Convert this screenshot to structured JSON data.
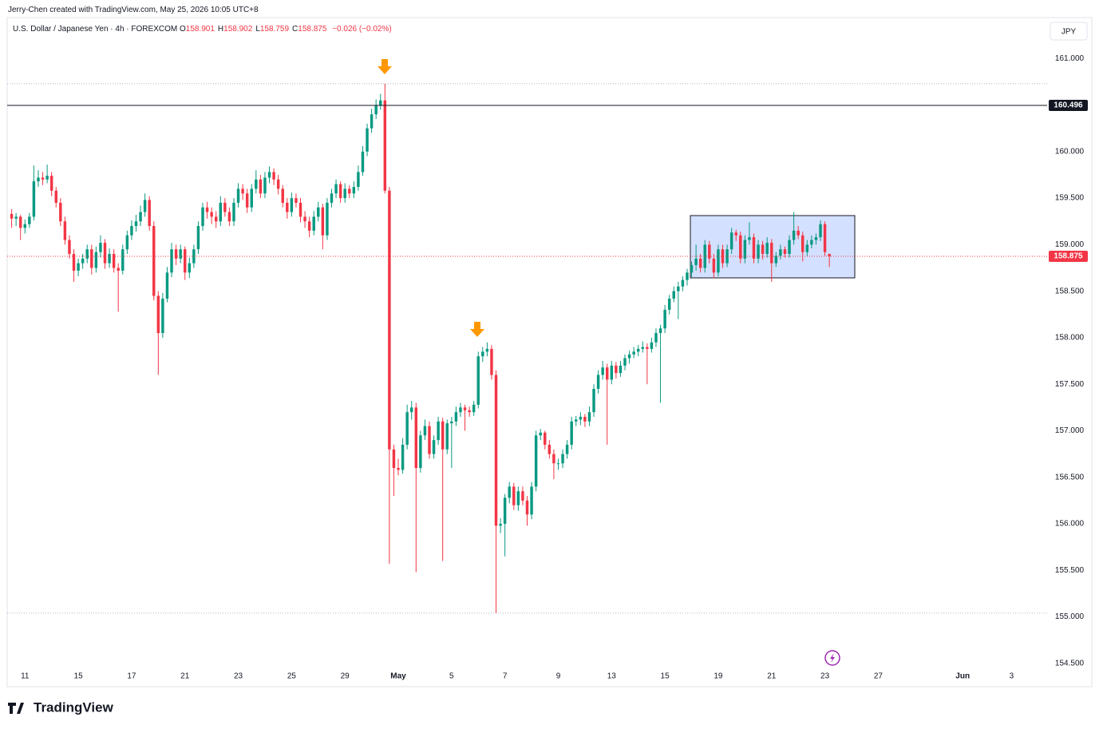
{
  "header": {
    "attribution": "Jerry-Chen created with TradingView.com, May 25, 2026 10:05 UTC+8",
    "symbol": "U.S. Dollar / Japanese Yen · 4h · FOREXCOM",
    "ohlc": [
      {
        "key": "O",
        "value": "158.901"
      },
      {
        "key": "H",
        "value": "158.902"
      },
      {
        "key": "L",
        "value": "158.759"
      },
      {
        "key": "C",
        "value": "158.875"
      }
    ],
    "change": "−0.026 (−0.02%)",
    "currency": "JPY",
    "brand": "TradingView"
  },
  "chart_data": {
    "type": "candlestick",
    "up_color": "#089981",
    "down_color": "#f23645",
    "grid": false,
    "xlim": [
      -1,
      233
    ],
    "ylim": [
      154.25,
      161.44
    ],
    "price_line": 160.496,
    "xticks": [
      {
        "value": 3,
        "label": "11"
      },
      {
        "value": 15,
        "label": "15"
      },
      {
        "value": 27,
        "label": "17"
      },
      {
        "value": 39,
        "label": "21"
      },
      {
        "value": 51,
        "label": "23"
      },
      {
        "value": 63,
        "label": "25"
      },
      {
        "value": 75,
        "label": "29"
      },
      {
        "value": 87,
        "label": "May"
      },
      {
        "value": 99,
        "label": "5"
      },
      {
        "value": 111,
        "label": "7"
      },
      {
        "value": 123,
        "label": "9"
      },
      {
        "value": 135,
        "label": "13"
      },
      {
        "value": 147,
        "label": "15"
      },
      {
        "value": 159,
        "label": "19"
      },
      {
        "value": 171,
        "label": "21"
      },
      {
        "value": 183,
        "label": "23"
      },
      {
        "value": 195,
        "label": "27"
      },
      {
        "value": 214,
        "label": "Jun"
      },
      {
        "value": 225,
        "label": "3"
      }
    ],
    "yticks": [
      {
        "value": 154.5,
        "label": "154.500"
      },
      {
        "value": 155,
        "label": "155.000"
      },
      {
        "value": 155.5,
        "label": "155.500"
      },
      {
        "value": 156,
        "label": "156.000"
      },
      {
        "value": 156.5,
        "label": "156.500"
      },
      {
        "value": 157,
        "label": "157.000"
      },
      {
        "value": 157.5,
        "label": "157.500"
      },
      {
        "value": 158,
        "label": "158.000"
      },
      {
        "value": 158.5,
        "label": "158.500"
      },
      {
        "value": 159,
        "label": "159.000"
      },
      {
        "value": 159.5,
        "label": "159.500"
      },
      {
        "value": 160,
        "label": "160.000"
      },
      {
        "value": 160.5,
        "label": "160.500"
      },
      {
        "value": 161,
        "label": "161.000"
      }
    ],
    "ohlc": [
      [
        159.33,
        159.38,
        159.18,
        159.28
      ],
      [
        159.28,
        159.34,
        159.2,
        159.3
      ],
      [
        159.3,
        159.32,
        159.05,
        159.18
      ],
      [
        159.18,
        159.27,
        159.12,
        159.22
      ],
      [
        159.22,
        159.34,
        159.18,
        159.3
      ],
      [
        159.3,
        159.85,
        159.26,
        159.68
      ],
      [
        159.68,
        159.8,
        159.62,
        159.72
      ],
      [
        159.72,
        159.78,
        159.64,
        159.7
      ],
      [
        159.7,
        159.86,
        159.66,
        159.74
      ],
      [
        159.74,
        159.78,
        159.52,
        159.58
      ],
      [
        159.58,
        159.62,
        159.4,
        159.45
      ],
      [
        159.45,
        159.5,
        159.2,
        159.25
      ],
      [
        159.25,
        159.3,
        159.0,
        159.05
      ],
      [
        159.05,
        159.1,
        158.85,
        158.9
      ],
      [
        158.9,
        158.95,
        158.6,
        158.72
      ],
      [
        158.72,
        158.85,
        158.66,
        158.8
      ],
      [
        158.8,
        158.9,
        158.74,
        158.85
      ],
      [
        158.85,
        159.0,
        158.8,
        158.95
      ],
      [
        158.95,
        159.0,
        158.68,
        158.75
      ],
      [
        158.75,
        158.98,
        158.7,
        158.92
      ],
      [
        158.92,
        159.1,
        158.86,
        159.02
      ],
      [
        159.02,
        159.06,
        158.74,
        158.8
      ],
      [
        158.8,
        158.96,
        158.75,
        158.9
      ],
      [
        158.9,
        158.95,
        158.7,
        158.75
      ],
      [
        158.75,
        158.8,
        158.28,
        158.72
      ],
      [
        158.72,
        159.0,
        158.68,
        158.95
      ],
      [
        158.95,
        159.15,
        158.9,
        159.1
      ],
      [
        159.1,
        159.26,
        159.05,
        159.2
      ],
      [
        159.2,
        159.32,
        159.14,
        159.25
      ],
      [
        159.25,
        159.42,
        159.2,
        159.35
      ],
      [
        159.35,
        159.55,
        159.3,
        159.48
      ],
      [
        159.48,
        159.52,
        159.15,
        159.2
      ],
      [
        159.2,
        159.25,
        158.4,
        158.45
      ],
      [
        158.45,
        158.5,
        157.6,
        158.05
      ],
      [
        158.05,
        158.48,
        158.0,
        158.42
      ],
      [
        158.42,
        158.76,
        158.38,
        158.7
      ],
      [
        158.7,
        159.02,
        158.65,
        158.95
      ],
      [
        158.95,
        159.0,
        158.78,
        158.85
      ],
      [
        158.85,
        159.0,
        158.8,
        158.95
      ],
      [
        158.95,
        158.98,
        158.62,
        158.7
      ],
      [
        158.7,
        158.86,
        158.64,
        158.8
      ],
      [
        158.8,
        159.0,
        158.75,
        158.95
      ],
      [
        158.95,
        159.25,
        158.9,
        159.2
      ],
      [
        159.2,
        159.45,
        159.15,
        159.4
      ],
      [
        159.4,
        159.46,
        159.28,
        159.35
      ],
      [
        159.35,
        159.4,
        159.22,
        159.3
      ],
      [
        159.3,
        159.36,
        159.18,
        159.25
      ],
      [
        159.25,
        159.52,
        159.2,
        159.45
      ],
      [
        159.45,
        159.5,
        159.3,
        159.35
      ],
      [
        159.35,
        159.4,
        159.2,
        159.25
      ],
      [
        159.25,
        159.5,
        159.2,
        159.45
      ],
      [
        159.45,
        159.66,
        159.4,
        159.6
      ],
      [
        159.6,
        159.65,
        159.48,
        159.55
      ],
      [
        159.55,
        159.6,
        159.34,
        159.4
      ],
      [
        159.4,
        159.65,
        159.35,
        159.6
      ],
      [
        159.6,
        159.8,
        159.55,
        159.7
      ],
      [
        159.7,
        159.75,
        159.5,
        159.55
      ],
      [
        159.55,
        159.78,
        159.5,
        159.72
      ],
      [
        159.72,
        159.84,
        159.66,
        159.78
      ],
      [
        159.78,
        159.82,
        159.64,
        159.7
      ],
      [
        159.7,
        159.75,
        159.54,
        159.6
      ],
      [
        159.6,
        159.64,
        159.4,
        159.45
      ],
      [
        159.45,
        159.5,
        159.28,
        159.35
      ],
      [
        159.35,
        159.56,
        159.3,
        159.5
      ],
      [
        159.5,
        159.55,
        159.4,
        159.45
      ],
      [
        159.45,
        159.5,
        159.24,
        159.3
      ],
      [
        159.3,
        159.36,
        159.18,
        159.25
      ],
      [
        159.25,
        159.3,
        159.08,
        159.15
      ],
      [
        159.15,
        159.36,
        159.1,
        159.3
      ],
      [
        159.3,
        159.46,
        159.25,
        159.4
      ],
      [
        159.4,
        159.44,
        158.95,
        159.1
      ],
      [
        159.1,
        159.5,
        159.05,
        159.45
      ],
      [
        159.45,
        159.6,
        159.4,
        159.55
      ],
      [
        159.55,
        159.7,
        159.5,
        159.65
      ],
      [
        159.65,
        159.68,
        159.45,
        159.5
      ],
      [
        159.5,
        159.66,
        159.45,
        159.6
      ],
      [
        159.6,
        159.64,
        159.5,
        159.55
      ],
      [
        159.55,
        159.68,
        159.5,
        159.62
      ],
      [
        159.62,
        159.85,
        159.58,
        159.78
      ],
      [
        159.78,
        160.06,
        159.74,
        160.0
      ],
      [
        160.0,
        160.3,
        159.95,
        160.25
      ],
      [
        160.25,
        160.46,
        160.2,
        160.4
      ],
      [
        160.4,
        160.56,
        160.35,
        160.5
      ],
      [
        160.5,
        160.62,
        160.45,
        160.55
      ],
      [
        160.55,
        160.73,
        159.55,
        159.58
      ],
      [
        159.58,
        159.62,
        155.57,
        156.8
      ],
      [
        156.8,
        156.85,
        156.3,
        156.6
      ],
      [
        156.6,
        156.7,
        156.52,
        156.58
      ],
      [
        156.58,
        156.92,
        156.54,
        156.85
      ],
      [
        156.85,
        157.28,
        156.8,
        157.2
      ],
      [
        157.2,
        157.32,
        157.12,
        157.25
      ],
      [
        157.25,
        157.3,
        155.48,
        156.6
      ],
      [
        156.6,
        157.0,
        156.55,
        156.95
      ],
      [
        156.95,
        157.12,
        156.9,
        157.05
      ],
      [
        157.05,
        157.1,
        156.7,
        156.75
      ],
      [
        156.75,
        156.95,
        156.7,
        156.9
      ],
      [
        156.9,
        157.15,
        156.85,
        157.1
      ],
      [
        157.1,
        157.14,
        155.6,
        156.8
      ],
      [
        156.8,
        157.12,
        156.75,
        157.08
      ],
      [
        157.08,
        157.15,
        156.6,
        157.1
      ],
      [
        157.1,
        157.26,
        157.05,
        157.2
      ],
      [
        157.2,
        157.3,
        157.15,
        157.25
      ],
      [
        157.25,
        157.28,
        157.0,
        157.22
      ],
      [
        157.22,
        157.26,
        157.15,
        157.2
      ],
      [
        157.2,
        157.32,
        157.16,
        157.28
      ],
      [
        157.28,
        157.85,
        157.24,
        157.8
      ],
      [
        157.8,
        157.9,
        157.74,
        157.85
      ],
      [
        157.85,
        157.95,
        157.8,
        157.88
      ],
      [
        157.88,
        157.92,
        157.55,
        157.6
      ],
      [
        157.6,
        157.65,
        155.04,
        155.98
      ],
      [
        155.98,
        156.06,
        155.9,
        156.0
      ],
      [
        156.0,
        156.32,
        155.65,
        156.28
      ],
      [
        156.28,
        156.45,
        156.22,
        156.4
      ],
      [
        156.4,
        156.44,
        156.15,
        156.2
      ],
      [
        156.2,
        156.4,
        156.14,
        156.35
      ],
      [
        156.35,
        156.4,
        156.2,
        156.25
      ],
      [
        156.25,
        156.3,
        155.98,
        156.1
      ],
      [
        156.1,
        156.45,
        156.05,
        156.4
      ],
      [
        156.4,
        157.0,
        156.35,
        156.95
      ],
      [
        156.95,
        157.02,
        156.9,
        156.98
      ],
      [
        156.98,
        157.0,
        156.8,
        156.85
      ],
      [
        156.85,
        156.9,
        156.7,
        156.75
      ],
      [
        156.75,
        156.8,
        156.48,
        156.65
      ],
      [
        156.65,
        156.7,
        156.58,
        156.65
      ],
      [
        156.65,
        156.8,
        156.6,
        156.75
      ],
      [
        156.75,
        156.9,
        156.7,
        156.85
      ],
      [
        156.85,
        157.15,
        156.8,
        157.1
      ],
      [
        157.1,
        157.16,
        157.05,
        157.12
      ],
      [
        157.12,
        157.2,
        157.06,
        157.15
      ],
      [
        157.15,
        157.18,
        157.04,
        157.1
      ],
      [
        157.1,
        157.26,
        157.05,
        157.2
      ],
      [
        157.2,
        157.5,
        157.15,
        157.45
      ],
      [
        157.45,
        157.65,
        157.4,
        157.6
      ],
      [
        157.6,
        157.75,
        157.55,
        157.68
      ],
      [
        157.68,
        157.72,
        156.85,
        157.55
      ],
      [
        157.55,
        157.75,
        157.5,
        157.7
      ],
      [
        157.7,
        157.74,
        157.56,
        157.62
      ],
      [
        157.62,
        157.75,
        157.58,
        157.7
      ],
      [
        157.7,
        157.82,
        157.65,
        157.78
      ],
      [
        157.78,
        157.86,
        157.72,
        157.82
      ],
      [
        157.82,
        157.9,
        157.78,
        157.85
      ],
      [
        157.85,
        157.92,
        157.8,
        157.88
      ],
      [
        157.88,
        157.96,
        157.84,
        157.9
      ],
      [
        157.9,
        157.94,
        157.5,
        157.88
      ],
      [
        157.88,
        158.0,
        157.84,
        157.95
      ],
      [
        157.95,
        158.1,
        157.9,
        158.05
      ],
      [
        158.05,
        158.14,
        157.3,
        158.1
      ],
      [
        158.1,
        158.35,
        158.05,
        158.3
      ],
      [
        158.3,
        158.46,
        158.25,
        158.42
      ],
      [
        158.42,
        158.55,
        158.38,
        158.5
      ],
      [
        158.5,
        158.6,
        158.2,
        158.55
      ],
      [
        158.55,
        158.66,
        158.5,
        158.62
      ],
      [
        158.62,
        158.74,
        158.56,
        158.7
      ],
      [
        158.7,
        158.82,
        158.65,
        158.78
      ],
      [
        158.78,
        159.0,
        158.72,
        158.85
      ],
      [
        158.85,
        158.9,
        158.7,
        158.75
      ],
      [
        158.75,
        159.05,
        158.7,
        159.0
      ],
      [
        159.0,
        159.04,
        158.8,
        158.85
      ],
      [
        158.85,
        158.9,
        158.64,
        158.7
      ],
      [
        158.7,
        159.0,
        158.66,
        158.95
      ],
      [
        158.95,
        159.0,
        158.75,
        158.8
      ],
      [
        158.8,
        159.0,
        158.76,
        158.95
      ],
      [
        158.95,
        159.18,
        158.9,
        159.13
      ],
      [
        159.13,
        159.16,
        159.04,
        159.1
      ],
      [
        159.1,
        159.14,
        158.8,
        158.85
      ],
      [
        158.85,
        159.1,
        158.8,
        159.05
      ],
      [
        159.05,
        159.24,
        159.0,
        159.08
      ],
      [
        159.08,
        159.12,
        158.8,
        158.85
      ],
      [
        158.85,
        159.05,
        158.8,
        159.0
      ],
      [
        159.0,
        159.04,
        158.84,
        158.9
      ],
      [
        158.9,
        159.08,
        158.86,
        159.02
      ],
      [
        159.02,
        159.06,
        158.6,
        158.8
      ],
      [
        158.8,
        158.92,
        158.76,
        158.88
      ],
      [
        158.88,
        159.0,
        158.84,
        158.95
      ],
      [
        158.95,
        158.98,
        158.86,
        158.9
      ],
      [
        158.9,
        159.1,
        158.86,
        159.05
      ],
      [
        159.05,
        159.35,
        159.0,
        159.15
      ],
      [
        159.15,
        159.2,
        159.06,
        159.1
      ],
      [
        159.1,
        159.14,
        158.82,
        158.92
      ],
      [
        158.92,
        159.05,
        158.88,
        159.0
      ],
      [
        159.0,
        159.1,
        158.96,
        159.05
      ],
      [
        159.05,
        159.12,
        159.0,
        159.08
      ],
      [
        159.08,
        159.26,
        159.04,
        159.22
      ],
      [
        159.22,
        159.25,
        158.88,
        158.92
      ],
      [
        158.901,
        158.902,
        158.759,
        158.875
      ]
    ]
  }
}
